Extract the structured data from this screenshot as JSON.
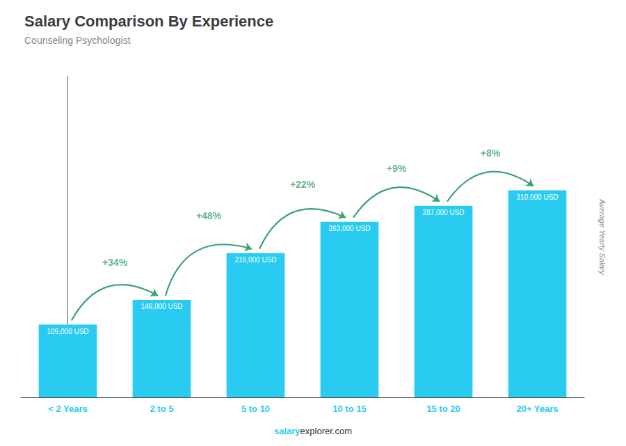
{
  "chart_data": {
    "type": "bar",
    "title": "Salary Comparison By Experience",
    "subtitle": "Counseling Psychologist",
    "ylabel": "Average Yearly Salary",
    "categories": [
      "< 2 Years",
      "2 to 5",
      "5 to 10",
      "10 to 15",
      "15 to 20",
      "20+ Years"
    ],
    "values": [
      109000,
      146000,
      216000,
      263000,
      287000,
      310000
    ],
    "value_labels": [
      "109,000 USD",
      "146,000 USD",
      "216,000 USD",
      "263,000 USD",
      "287,000 USD",
      "310,000 USD"
    ],
    "data_labels": true,
    "color": "#29ccf0",
    "ylim": [
      0,
      480500
    ],
    "grid": false,
    "tick_labels": "x",
    "annotations": [
      "+34%",
      "+48%",
      "+22%",
      "+9%",
      "+8%"
    ],
    "footer": [
      "salary",
      "explorer.com"
    ]
  }
}
